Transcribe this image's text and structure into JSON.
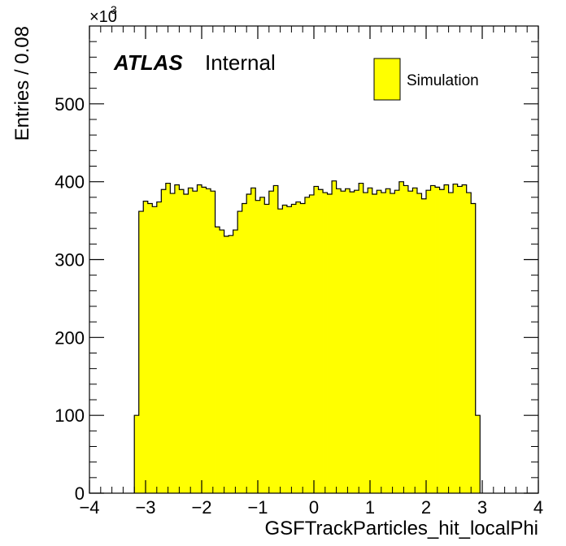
{
  "chart_data": {
    "type": "bar",
    "title": "",
    "xlabel": "GSFTrackParticles_hit_localPhi",
    "ylabel": "Entries / 0.08",
    "y_multiplier_base": "×10",
    "y_multiplier_exp": "3",
    "experiment": "ATLAS",
    "experiment_status": "Internal",
    "xlim": [
      -4,
      4
    ],
    "ylim": [
      0,
      600
    ],
    "x_ticks": [
      -4,
      -3,
      -2,
      -1,
      0,
      1,
      2,
      3,
      4
    ],
    "x_tick_labels": [
      "−4",
      "−3",
      "−2",
      "−1",
      "0",
      "1",
      "2",
      "3",
      "4"
    ],
    "y_ticks": [
      0,
      100,
      200,
      300,
      400,
      500
    ],
    "y_tick_labels": [
      "0",
      "100",
      "200",
      "300",
      "400",
      "500"
    ],
    "grid": false,
    "legend_position": "top-right",
    "series": [
      {
        "name": "Simulation",
        "color": "#ffff00",
        "edge_color": "#000000",
        "bin_width": 0.08,
        "x_start": -3.2,
        "values": [
          100,
          362,
          375,
          372,
          368,
          374,
          390,
          398,
          385,
          396,
          390,
          384,
          392,
          388,
          396,
          393,
          391,
          388,
          342,
          338,
          330,
          331,
          338,
          362,
          372,
          384,
          392,
          376,
          380,
          371,
          388,
          395,
          365,
          370,
          368,
          371,
          374,
          372,
          380,
          383,
          394,
          390,
          386,
          384,
          401,
          391,
          388,
          391,
          387,
          389,
          398,
          386,
          392,
          384,
          389,
          386,
          391,
          385,
          389,
          400,
          395,
          388,
          392,
          385,
          378,
          389,
          395,
          393,
          390,
          396,
          386,
          397,
          394,
          396,
          386,
          372,
          100
        ]
      }
    ]
  }
}
